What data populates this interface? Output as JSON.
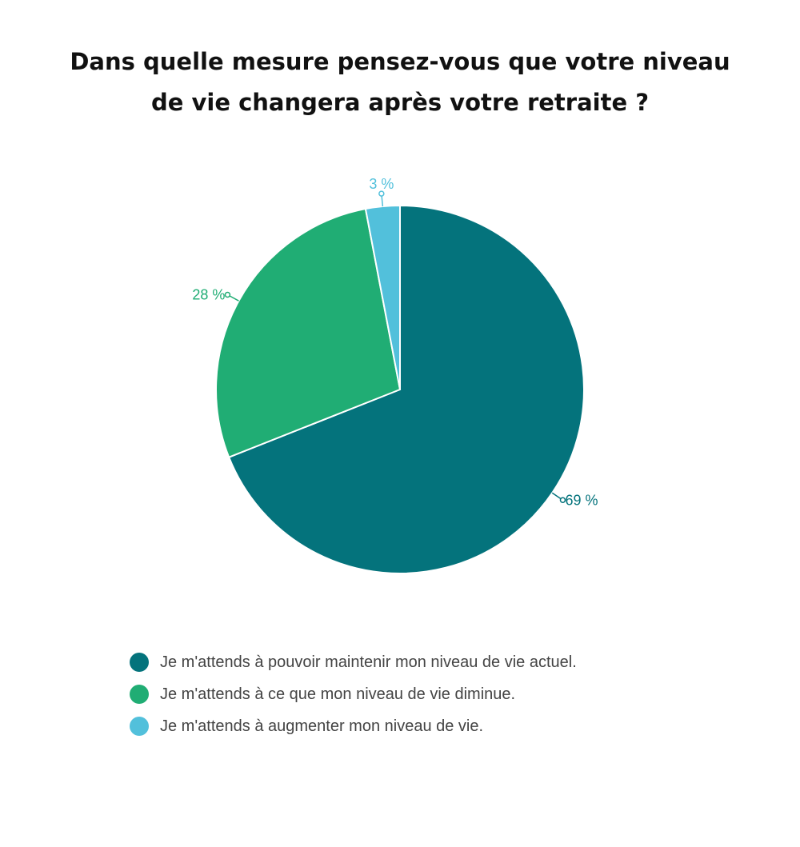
{
  "chart_data": {
    "type": "pie",
    "title": [
      "Dans quelle mesure pensez-vous que votre niveau",
      "de vie changera après votre retraite ?"
    ],
    "slices": [
      {
        "label": "Je m'attends à pouvoir maintenir mon niveau de vie actuel.",
        "value": 69,
        "data_label": "69 %",
        "color": "#04737C"
      },
      {
        "label": "Je m'attends à ce que mon niveau de vie diminue.",
        "value": 28,
        "data_label": "28 %",
        "color": "#20AD74"
      },
      {
        "label": "Je m'attends à augmenter mon niveau de vie.",
        "value": 3,
        "data_label": "3 %",
        "color": "#52C0DB"
      }
    ],
    "start_angle": "top, clockwise",
    "legend_position": "bottom"
  }
}
